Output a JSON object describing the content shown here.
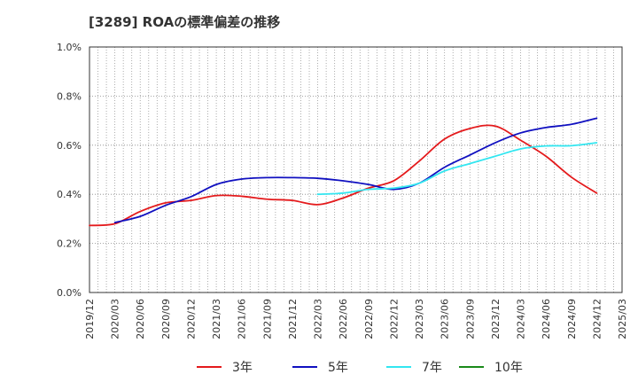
{
  "chart_data": {
    "type": "line",
    "title": "[3289]  ROAの標準偏差の推移",
    "xlabel": "",
    "ylabel": "",
    "ylim": [
      0,
      1.0
    ],
    "y_ticks": [
      "0.0%",
      "0.2%",
      "0.4%",
      "0.6%",
      "0.8%",
      "1.0%"
    ],
    "x_ticks": [
      "2019/12",
      "2020/03",
      "2020/06",
      "2020/09",
      "2020/12",
      "2021/03",
      "2021/06",
      "2021/09",
      "2021/12",
      "2022/03",
      "2022/06",
      "2022/09",
      "2022/12",
      "2023/03",
      "2023/06",
      "2023/09",
      "2023/12",
      "2024/03",
      "2024/06",
      "2024/09",
      "2024/12",
      "2025/03"
    ],
    "grid": true,
    "legend_position": "bottom",
    "colors": {
      "3年": "#e41a1c",
      "5年": "#1010c0",
      "7年": "#33e6f0",
      "10年": "#1a8a1a"
    },
    "series": [
      {
        "name": "3年",
        "points": [
          [
            "2019/12",
            0.273
          ],
          [
            "2020/03",
            0.28
          ],
          [
            "2020/06",
            0.33
          ],
          [
            "2020/09",
            0.365
          ],
          [
            "2020/12",
            0.375
          ],
          [
            "2021/03",
            0.395
          ],
          [
            "2021/06",
            0.392
          ],
          [
            "2021/09",
            0.38
          ],
          [
            "2021/12",
            0.375
          ],
          [
            "2022/03",
            0.358
          ],
          [
            "2022/06",
            0.385
          ],
          [
            "2022/09",
            0.425
          ],
          [
            "2022/12",
            0.455
          ],
          [
            "2023/03",
            0.535
          ],
          [
            "2023/06",
            0.625
          ],
          [
            "2023/09",
            0.668
          ],
          [
            "2023/12",
            0.678
          ],
          [
            "2024/03",
            0.62
          ],
          [
            "2024/06",
            0.555
          ],
          [
            "2024/09",
            0.47
          ],
          [
            "2024/12",
            0.405
          ]
        ]
      },
      {
        "name": "5年",
        "points": [
          [
            "2020/03",
            0.285
          ],
          [
            "2020/06",
            0.31
          ],
          [
            "2020/09",
            0.355
          ],
          [
            "2020/12",
            0.39
          ],
          [
            "2021/03",
            0.44
          ],
          [
            "2021/06",
            0.462
          ],
          [
            "2021/09",
            0.468
          ],
          [
            "2021/12",
            0.468
          ],
          [
            "2022/03",
            0.465
          ],
          [
            "2022/06",
            0.455
          ],
          [
            "2022/09",
            0.44
          ],
          [
            "2022/12",
            0.42
          ],
          [
            "2023/03",
            0.445
          ],
          [
            "2023/06",
            0.51
          ],
          [
            "2023/09",
            0.56
          ],
          [
            "2023/12",
            0.61
          ],
          [
            "2024/03",
            0.65
          ],
          [
            "2024/06",
            0.672
          ],
          [
            "2024/09",
            0.685
          ],
          [
            "2024/12",
            0.71
          ]
        ]
      },
      {
        "name": "7年",
        "points": [
          [
            "2022/03",
            0.4
          ],
          [
            "2022/06",
            0.405
          ],
          [
            "2022/09",
            0.42
          ],
          [
            "2022/12",
            0.425
          ],
          [
            "2023/03",
            0.445
          ],
          [
            "2023/06",
            0.495
          ],
          [
            "2023/09",
            0.525
          ],
          [
            "2023/12",
            0.555
          ],
          [
            "2024/03",
            0.585
          ],
          [
            "2024/06",
            0.597
          ],
          [
            "2024/09",
            0.598
          ],
          [
            "2024/12",
            0.61
          ]
        ]
      },
      {
        "name": "10年",
        "points": []
      }
    ]
  }
}
